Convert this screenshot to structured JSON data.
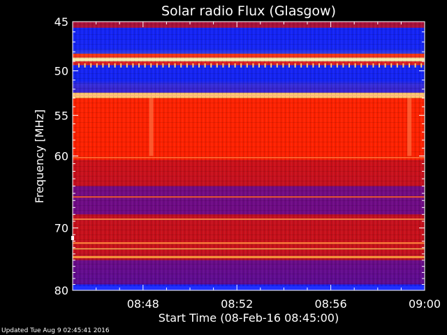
{
  "chart_data": {
    "type": "heatmap",
    "title": "Solar radio Flux (Glasgow)",
    "xlabel": "Start Time (08-Feb-16 08:45:00)",
    "ylabel": "Frequency [MHz]",
    "x_range_minutes": [
      0,
      15
    ],
    "x_ticks": [
      {
        "label": "08:48",
        "minute": 3
      },
      {
        "label": "08:52",
        "minute": 7
      },
      {
        "label": "08:56",
        "minute": 11
      },
      {
        "label": "09:00",
        "minute": 15
      }
    ],
    "y_range_mhz": [
      45,
      80
    ],
    "y_scale": "log",
    "y_ticks": [
      45,
      50,
      55,
      60,
      70,
      80
    ],
    "colors": {
      "low": "#0a10ff",
      "mid": "#c81010",
      "high": "#ff2a00",
      "peak": "#ffee66"
    },
    "bands": [
      {
        "from": 45.0,
        "to": 45.6,
        "level": "mid"
      },
      {
        "from": 45.6,
        "to": 48.2,
        "level": "low"
      },
      {
        "from": 48.2,
        "to": 48.6,
        "level": "high"
      },
      {
        "from": 48.6,
        "to": 49.0,
        "level": "peak"
      },
      {
        "from": 49.0,
        "to": 49.4,
        "level": "high"
      },
      {
        "from": 49.4,
        "to": 52.4,
        "level": "low"
      },
      {
        "from": 52.4,
        "to": 53.0,
        "level": "peak"
      },
      {
        "from": 53.0,
        "to": 60.5,
        "level": "high"
      },
      {
        "from": 60.5,
        "to": 64.0,
        "level": "mid"
      },
      {
        "from": 64.0,
        "to": 68.0,
        "level": "mid-low"
      },
      {
        "from": 68.0,
        "to": 75.0,
        "level": "mid"
      },
      {
        "from": 75.0,
        "to": 79.0,
        "level": "mid-low"
      },
      {
        "from": 79.0,
        "to": 80.0,
        "level": "low"
      }
    ]
  },
  "footer": {
    "updated": "Updated Tue Aug  9 02:45:41 2016"
  }
}
